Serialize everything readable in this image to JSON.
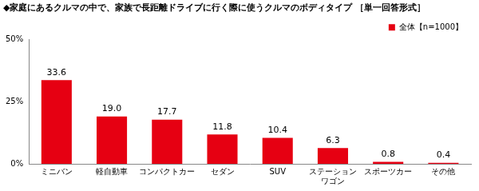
{
  "chart_data": {
    "type": "bar",
    "title": "◆家庭にあるクルマの中で、家族で長距離ドライブに行く際に使うクルマのボディタイプ ［単一回答形式］",
    "categories": [
      "ミニバン",
      "軽自動車",
      "コンパクトカー",
      "セダン",
      "SUV",
      "ステーションワゴン",
      "スポーツカー",
      "その他"
    ],
    "series": [
      {
        "name": "全体【n=1000】",
        "color": "#e60012",
        "values": [
          33.6,
          19.0,
          17.7,
          11.8,
          10.4,
          6.3,
          0.8,
          0.4
        ],
        "value_labels": [
          "33.6",
          "19.0",
          "17.7",
          "11.8",
          "10.4",
          "6.3",
          "0.8",
          "0.4"
        ]
      }
    ],
    "ylim": [
      0,
      50
    ],
    "yticks": [
      {
        "value": 0,
        "label": "0%"
      },
      {
        "value": 25,
        "label": "25%"
      },
      {
        "value": 50,
        "label": "50%"
      }
    ],
    "grid": false,
    "legend": "upper right",
    "data_labels": true
  }
}
